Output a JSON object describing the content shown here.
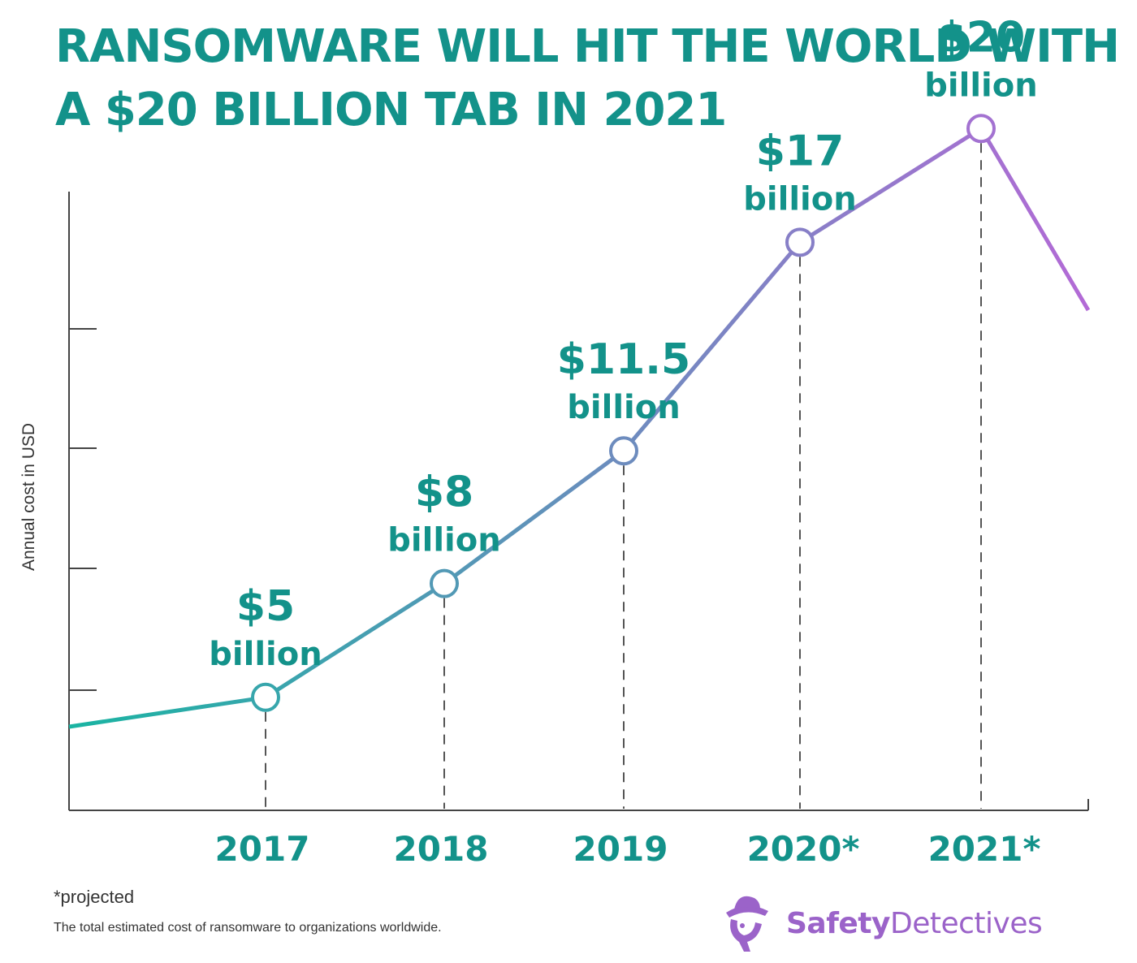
{
  "title_lines": [
    "RANSOMWARE WILL HIT THE WORLD WITH",
    "A $20 BILLION TAB IN 2021"
  ],
  "colors": {
    "title": "#13928a",
    "label": "#13928a",
    "line_start": "#19b4a2",
    "line_end": "#b36ad6",
    "axis": "#444444",
    "brand": "#9b63c9"
  },
  "chart_data": {
    "type": "line",
    "title": "RANSOMWARE WILL HIT THE WORLD WITH A $20 BILLION TAB IN 2021",
    "xlabel": "",
    "ylabel": "Annual cost in USD",
    "x": [
      "2017",
      "2018",
      "2019",
      "2020*",
      "2021*"
    ],
    "series": [
      {
        "values": [
          5,
          8,
          11.5,
          17,
          20
        ]
      }
    ],
    "value_labels": [
      {
        "amount": "$5",
        "unit": "billion"
      },
      {
        "amount": "$8",
        "unit": "billion"
      },
      {
        "amount": "$11.5",
        "unit": "billion"
      },
      {
        "amount": "$17",
        "unit": "billion"
      },
      {
        "amount": "$20",
        "unit": "billion"
      }
    ],
    "grid": false,
    "legend": "none"
  },
  "footnote": "*projected",
  "description": "The total estimated cost of ransomware to organizations worldwide.",
  "brand": {
    "bold": "Safety",
    "regular": "Detectives",
    "icon": "detective-hat-icon"
  }
}
